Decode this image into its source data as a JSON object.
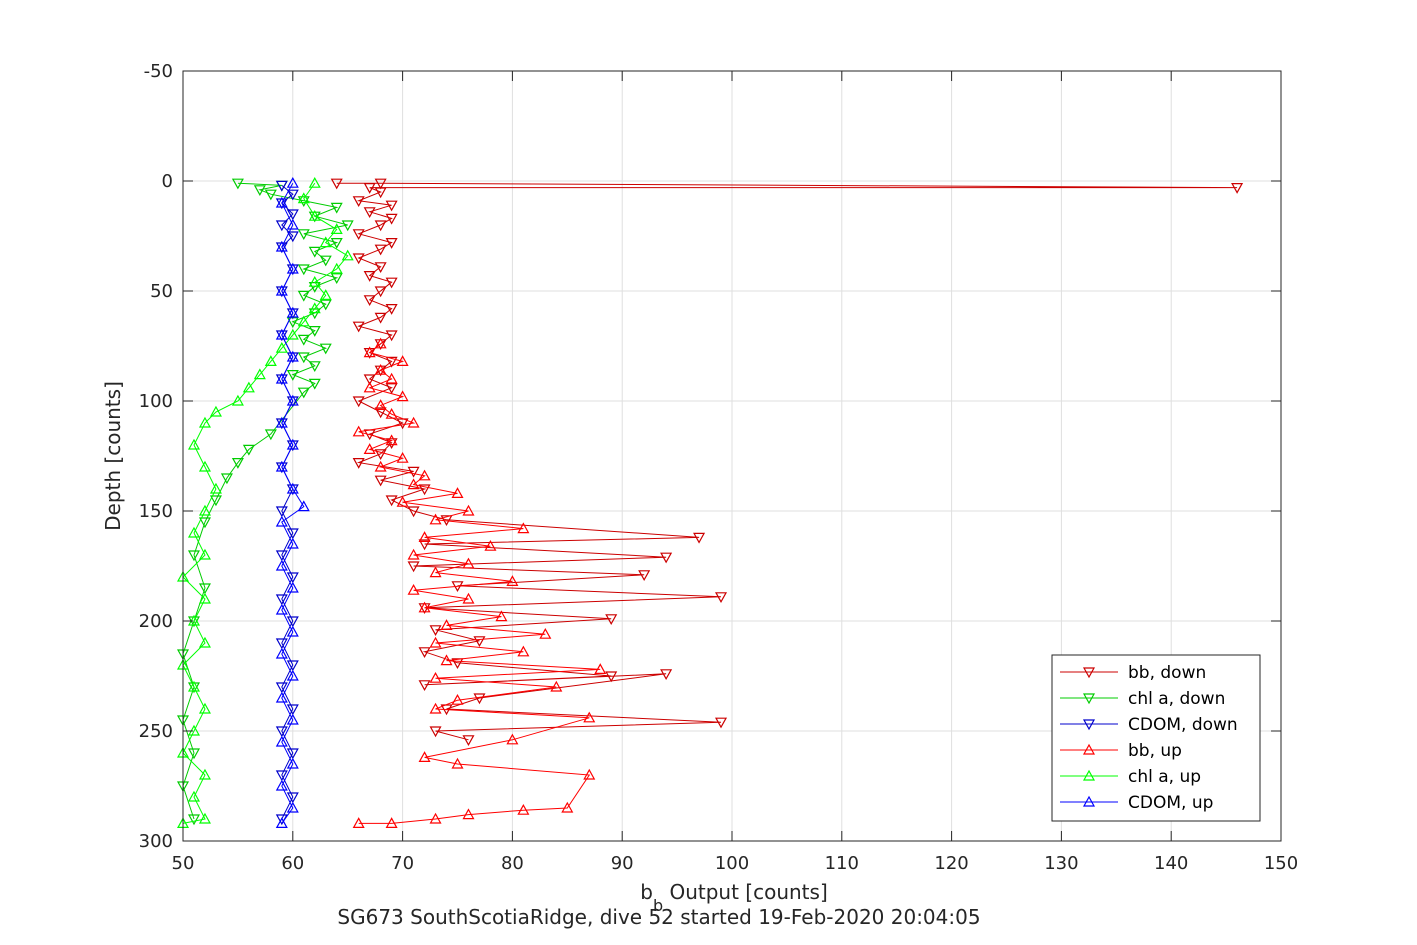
{
  "chart_data": {
    "type": "line",
    "title": "",
    "xlabel_main": "b",
    "xlabel_sub": "b",
    "xlabel_rest": " Output [counts]",
    "ylabel": "Depth [counts]",
    "caption": "SG673 SouthScotiaRidge, dive 52 started 19-Feb-2020 20:04:05",
    "xlim": [
      50,
      150
    ],
    "ylim": [
      -50,
      300
    ],
    "y_reversed": true,
    "grid": true,
    "legend_position": "bottom-right",
    "xticks": [
      50,
      60,
      70,
      80,
      90,
      100,
      110,
      120,
      130,
      140,
      150
    ],
    "yticks": [
      -50,
      0,
      50,
      100,
      150,
      200,
      250,
      300
    ],
    "series": [
      {
        "name": "bb, down",
        "color": "#cc0000",
        "marker": "triangle-down",
        "points": [
          [
            64,
            1
          ],
          [
            68,
            1
          ],
          [
            146,
            3
          ],
          [
            67,
            3
          ],
          [
            68,
            5
          ],
          [
            66,
            9
          ],
          [
            69,
            11
          ],
          [
            67,
            14
          ],
          [
            69,
            17
          ],
          [
            68,
            20
          ],
          [
            66,
            24
          ],
          [
            69,
            28
          ],
          [
            68,
            31
          ],
          [
            66,
            35
          ],
          [
            68,
            39
          ],
          [
            67,
            43
          ],
          [
            69,
            46
          ],
          [
            68,
            50
          ],
          [
            67,
            54
          ],
          [
            69,
            58
          ],
          [
            68,
            62
          ],
          [
            66,
            66
          ],
          [
            69,
            70
          ],
          [
            68,
            74
          ],
          [
            67,
            78
          ],
          [
            69,
            82
          ],
          [
            68,
            86
          ],
          [
            67,
            90
          ],
          [
            69,
            94
          ],
          [
            66,
            100
          ],
          [
            68,
            105
          ],
          [
            70,
            110
          ],
          [
            67,
            115
          ],
          [
            69,
            119
          ],
          [
            68,
            124
          ],
          [
            66,
            128
          ],
          [
            71,
            132
          ],
          [
            68,
            136
          ],
          [
            72,
            140
          ],
          [
            69,
            145
          ],
          [
            71,
            150
          ],
          [
            74,
            154
          ],
          [
            97,
            162
          ],
          [
            72,
            165
          ],
          [
            94,
            171
          ],
          [
            71,
            175
          ],
          [
            92,
            179
          ],
          [
            75,
            184
          ],
          [
            99,
            189
          ],
          [
            72,
            194
          ],
          [
            89,
            199
          ],
          [
            73,
            204
          ],
          [
            77,
            209
          ],
          [
            72,
            214
          ],
          [
            75,
            219
          ],
          [
            89,
            225
          ],
          [
            72,
            229
          ],
          [
            94,
            224
          ],
          [
            77,
            235
          ],
          [
            74,
            240
          ],
          [
            99,
            246
          ],
          [
            73,
            250
          ],
          [
            76,
            254
          ]
        ]
      },
      {
        "name": "chl a, down",
        "color": "#00cc00",
        "marker": "triangle-down",
        "points": [
          [
            55,
            1
          ],
          [
            59,
            2
          ],
          [
            57,
            4
          ],
          [
            58,
            6
          ],
          [
            61,
            9
          ],
          [
            64,
            12
          ],
          [
            62,
            16
          ],
          [
            65,
            20
          ],
          [
            61,
            24
          ],
          [
            64,
            28
          ],
          [
            62,
            32
          ],
          [
            63,
            36
          ],
          [
            61,
            40
          ],
          [
            64,
            44
          ],
          [
            62,
            48
          ],
          [
            61,
            52
          ],
          [
            63,
            56
          ],
          [
            62,
            60
          ],
          [
            60,
            64
          ],
          [
            62,
            68
          ],
          [
            61,
            72
          ],
          [
            63,
            76
          ],
          [
            61,
            80
          ],
          [
            62,
            84
          ],
          [
            60,
            88
          ],
          [
            62,
            92
          ],
          [
            61,
            96
          ],
          [
            58,
            115
          ],
          [
            56,
            122
          ],
          [
            55,
            128
          ],
          [
            54,
            135
          ],
          [
            53,
            145
          ],
          [
            52,
            155
          ],
          [
            51,
            170
          ],
          [
            52,
            185
          ],
          [
            51,
            200
          ],
          [
            50,
            215
          ],
          [
            51,
            230
          ],
          [
            50,
            245
          ],
          [
            51,
            260
          ],
          [
            50,
            275
          ],
          [
            51,
            290
          ]
        ]
      },
      {
        "name": "CDOM, down",
        "color": "#0000cc",
        "marker": "triangle-down",
        "points": [
          [
            59,
            2
          ],
          [
            60,
            6
          ],
          [
            59,
            10
          ],
          [
            60,
            15
          ],
          [
            59,
            20
          ],
          [
            60,
            25
          ],
          [
            59,
            30
          ],
          [
            60,
            40
          ],
          [
            59,
            50
          ],
          [
            60,
            60
          ],
          [
            59,
            70
          ],
          [
            60,
            80
          ],
          [
            59,
            90
          ],
          [
            60,
            100
          ],
          [
            59,
            110
          ],
          [
            60,
            120
          ],
          [
            59,
            130
          ],
          [
            60,
            140
          ],
          [
            59,
            150
          ],
          [
            60,
            160
          ],
          [
            59,
            170
          ],
          [
            60,
            180
          ],
          [
            59,
            190
          ],
          [
            60,
            200
          ],
          [
            59,
            210
          ],
          [
            60,
            220
          ],
          [
            59,
            230
          ],
          [
            60,
            240
          ],
          [
            59,
            250
          ],
          [
            60,
            260
          ],
          [
            59,
            270
          ],
          [
            60,
            280
          ],
          [
            59,
            290
          ]
        ]
      },
      {
        "name": "bb, up",
        "color": "#ff0000",
        "marker": "triangle-up",
        "points": [
          [
            66,
            292
          ],
          [
            69,
            292
          ],
          [
            73,
            290
          ],
          [
            76,
            288
          ],
          [
            81,
            286
          ],
          [
            85,
            285
          ],
          [
            87,
            270
          ],
          [
            75,
            265
          ],
          [
            72,
            262
          ],
          [
            80,
            254
          ],
          [
            87,
            244
          ],
          [
            73,
            240
          ],
          [
            75,
            236
          ],
          [
            84,
            230
          ],
          [
            73,
            226
          ],
          [
            88,
            222
          ],
          [
            74,
            218
          ],
          [
            81,
            214
          ],
          [
            73,
            210
          ],
          [
            83,
            206
          ],
          [
            74,
            202
          ],
          [
            79,
            198
          ],
          [
            72,
            194
          ],
          [
            76,
            190
          ],
          [
            71,
            186
          ],
          [
            80,
            182
          ],
          [
            73,
            178
          ],
          [
            76,
            174
          ],
          [
            71,
            170
          ],
          [
            78,
            166
          ],
          [
            72,
            162
          ],
          [
            81,
            158
          ],
          [
            73,
            154
          ],
          [
            76,
            150
          ],
          [
            70,
            146
          ],
          [
            75,
            142
          ],
          [
            71,
            138
          ],
          [
            72,
            134
          ],
          [
            68,
            130
          ],
          [
            70,
            126
          ],
          [
            67,
            122
          ],
          [
            69,
            118
          ],
          [
            66,
            114
          ],
          [
            71,
            110
          ],
          [
            69,
            106
          ],
          [
            68,
            102
          ],
          [
            70,
            98
          ],
          [
            67,
            94
          ],
          [
            69,
            90
          ],
          [
            68,
            86
          ],
          [
            70,
            82
          ],
          [
            67,
            78
          ],
          [
            68,
            74
          ]
        ]
      },
      {
        "name": "chl a, up",
        "color": "#00ff00",
        "marker": "triangle-up",
        "points": [
          [
            50,
            292
          ],
          [
            52,
            290
          ],
          [
            51,
            280
          ],
          [
            52,
            270
          ],
          [
            50,
            260
          ],
          [
            51,
            250
          ],
          [
            52,
            240
          ],
          [
            51,
            230
          ],
          [
            50,
            220
          ],
          [
            52,
            210
          ],
          [
            51,
            200
          ],
          [
            52,
            190
          ],
          [
            50,
            180
          ],
          [
            52,
            170
          ],
          [
            51,
            160
          ],
          [
            52,
            150
          ],
          [
            53,
            140
          ],
          [
            52,
            130
          ],
          [
            51,
            120
          ],
          [
            52,
            110
          ],
          [
            53,
            105
          ],
          [
            55,
            100
          ],
          [
            56,
            94
          ],
          [
            57,
            88
          ],
          [
            58,
            82
          ],
          [
            59,
            76
          ],
          [
            60,
            70
          ],
          [
            61,
            64
          ],
          [
            62,
            58
          ],
          [
            63,
            52
          ],
          [
            62,
            46
          ],
          [
            64,
            40
          ],
          [
            65,
            34
          ],
          [
            63,
            28
          ],
          [
            64,
            22
          ],
          [
            62,
            16
          ],
          [
            61,
            8
          ],
          [
            62,
            1
          ]
        ]
      },
      {
        "name": "CDOM, up",
        "color": "#0000ff",
        "marker": "triangle-up",
        "points": [
          [
            59,
            292
          ],
          [
            60,
            285
          ],
          [
            59,
            275
          ],
          [
            60,
            265
          ],
          [
            59,
            255
          ],
          [
            60,
            245
          ],
          [
            59,
            235
          ],
          [
            60,
            225
          ],
          [
            59,
            215
          ],
          [
            60,
            205
          ],
          [
            59,
            195
          ],
          [
            60,
            185
          ],
          [
            59,
            175
          ],
          [
            60,
            165
          ],
          [
            59,
            155
          ],
          [
            61,
            148
          ],
          [
            60,
            140
          ],
          [
            59,
            130
          ],
          [
            60,
            120
          ],
          [
            59,
            110
          ],
          [
            60,
            100
          ],
          [
            59,
            90
          ],
          [
            60,
            80
          ],
          [
            59,
            70
          ],
          [
            60,
            60
          ],
          [
            59,
            50
          ],
          [
            60,
            40
          ],
          [
            59,
            30
          ],
          [
            60,
            20
          ],
          [
            59,
            10
          ],
          [
            60,
            1
          ]
        ]
      }
    ]
  }
}
